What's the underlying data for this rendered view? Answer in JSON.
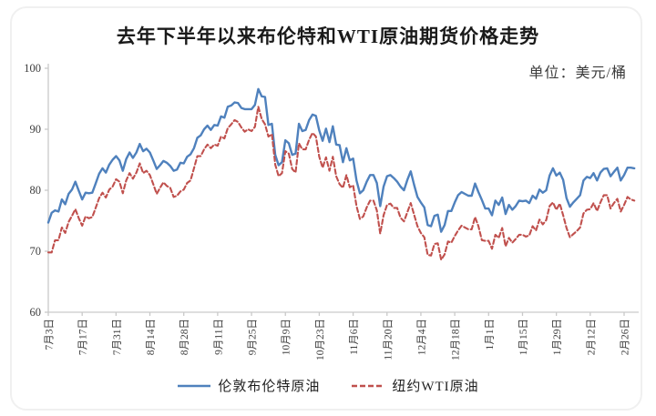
{
  "chart_data": {
    "type": "line",
    "title": "去年下半年以来布伦特和WTI原油期货价格走势",
    "unit_label": "单位：美元/桶",
    "ylim": [
      60,
      100
    ],
    "yticks": [
      60,
      70,
      80,
      90,
      100
    ],
    "grid": false,
    "legend_position": "bottom",
    "tick_interval": 10,
    "categories": [
      "7月3日",
      "7月17日",
      "7月31日",
      "8月14日",
      "8月28日",
      "9月11日",
      "9月25日",
      "10月9日",
      "10月23日",
      "11月6日",
      "11月20日",
      "12月4日",
      "12月18日",
      "1月1日",
      "1月15日",
      "1月29日",
      "2月12日",
      "2月26日"
    ],
    "series": [
      {
        "name": "伦敦布伦特原油",
        "color": "#4f81bd",
        "style": "solid",
        "values": [
          74.7,
          76.3,
          76.7,
          76.5,
          78.5,
          77.7,
          79.4,
          80.1,
          81.4,
          79.9,
          78.5,
          79.6,
          79.5,
          79.6,
          81.1,
          82.7,
          83.6,
          82.9,
          84.2,
          85.0,
          85.6,
          84.9,
          83.2,
          85.1,
          86.2,
          85.3,
          86.2,
          87.6,
          86.4,
          86.8,
          86.2,
          84.9,
          83.5,
          84.1,
          84.8,
          84.5,
          84.0,
          83.2,
          83.4,
          84.5,
          84.4,
          85.5,
          85.9,
          86.9,
          88.6,
          89.0,
          90.0,
          90.6,
          89.9,
          90.7,
          90.6,
          92.1,
          91.9,
          93.7,
          93.9,
          94.4,
          94.3,
          93.5,
          93.3,
          93.3,
          93.3,
          94.0,
          96.6,
          95.4,
          95.3,
          90.7,
          90.9,
          85.8,
          84.1,
          84.6,
          88.2,
          87.7,
          85.8,
          86.0,
          90.9,
          89.7,
          89.9,
          91.5,
          92.4,
          92.2,
          89.8,
          88.1,
          90.1,
          87.9,
          90.5,
          87.5,
          87.4,
          84.6,
          86.9,
          84.9,
          85.2,
          81.6,
          79.5,
          80.0,
          81.4,
          82.5,
          82.5,
          81.2,
          77.4,
          80.6,
          82.3,
          82.5,
          82.0,
          81.4,
          80.6,
          80.0,
          81.7,
          83.1,
          80.9,
          78.9,
          78.0,
          77.2,
          74.3,
          74.1,
          75.8,
          76.0,
          73.2,
          74.3,
          76.6,
          76.6,
          78.0,
          79.2,
          79.7,
          79.4,
          79.1,
          79.1,
          81.1,
          79.7,
          78.4,
          77.0,
          77.0,
          75.9,
          78.3,
          77.6,
          78.8,
          76.1,
          77.6,
          76.8,
          77.4,
          78.3,
          78.2,
          78.3,
          77.9,
          79.1,
          78.6,
          80.1,
          79.6,
          80.0,
          82.4,
          83.6,
          82.4,
          82.9,
          81.7,
          78.7,
          77.3,
          78.0,
          78.6,
          79.2,
          81.6,
          82.2,
          82.0,
          82.8,
          81.6,
          82.9,
          83.5,
          83.6,
          82.3,
          83.0,
          83.7,
          81.6,
          82.5,
          83.7,
          83.7,
          83.6
        ]
      },
      {
        "name": "纽约WTI原油",
        "color": "#c0504d",
        "style": "dashed",
        "values": [
          69.8,
          69.8,
          71.8,
          71.8,
          73.9,
          73.0,
          74.8,
          75.8,
          76.9,
          75.4,
          74.2,
          75.7,
          75.4,
          75.6,
          77.1,
          78.7,
          79.6,
          78.8,
          80.1,
          80.6,
          81.8,
          81.4,
          79.5,
          81.6,
          82.8,
          81.9,
          82.9,
          84.4,
          82.8,
          83.2,
          82.5,
          81.0,
          79.4,
          80.4,
          81.3,
          80.7,
          80.4,
          78.9,
          79.1,
          79.8,
          80.1,
          81.2,
          81.6,
          83.6,
          85.6,
          85.6,
          86.7,
          87.5,
          86.9,
          87.5,
          87.3,
          88.8,
          88.5,
          90.2,
          90.8,
          91.5,
          91.2,
          90.3,
          89.6,
          90.0,
          89.7,
          90.4,
          93.7,
          91.7,
          90.8,
          88.8,
          89.2,
          84.2,
          82.3,
          82.8,
          86.4,
          86.0,
          83.5,
          82.9,
          87.7,
          86.7,
          86.7,
          88.3,
          89.4,
          88.8,
          85.5,
          83.7,
          85.4,
          83.2,
          85.5,
          82.3,
          81.0,
          80.4,
          82.5,
          80.5,
          80.8,
          77.4,
          75.3,
          75.7,
          77.2,
          78.3,
          78.3,
          76.7,
          72.9,
          75.9,
          77.6,
          77.8,
          77.1,
          77.1,
          75.5,
          74.9,
          76.4,
          77.9,
          76.0,
          74.1,
          73.0,
          72.3,
          69.4,
          69.3,
          71.2,
          71.3,
          68.6,
          69.5,
          71.6,
          71.4,
          72.5,
          73.4,
          74.2,
          73.9,
          73.6,
          73.6,
          75.6,
          74.1,
          71.8,
          71.7,
          71.7,
          70.4,
          72.7,
          72.2,
          73.8,
          70.8,
          72.2,
          71.4,
          72.0,
          72.7,
          72.7,
          72.4,
          72.6,
          74.1,
          73.4,
          75.2,
          74.4,
          75.1,
          77.4,
          78.0,
          76.8,
          77.8,
          75.9,
          73.8,
          72.3,
          72.8,
          73.3,
          73.9,
          76.2,
          76.8,
          76.9,
          77.9,
          76.6,
          78.0,
          79.2,
          79.2,
          77.0,
          77.9,
          78.6,
          76.5,
          77.6,
          78.9,
          78.5,
          78.3
        ]
      }
    ],
    "axis_color": "#c9c9c9",
    "tick_label_color": "#3d3d3d"
  }
}
